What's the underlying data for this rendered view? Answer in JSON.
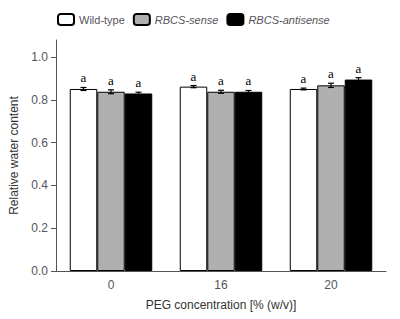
{
  "chart_data": {
    "type": "bar",
    "xlabel": "PEG concentration [% (w/v)]",
    "ylabel": "Relative water content",
    "categories": [
      "0",
      "16",
      "20"
    ],
    "series": [
      {
        "name": "Wild-type",
        "color": "white",
        "values": [
          0.851,
          0.862,
          0.851
        ],
        "errors": [
          0.007,
          0.005,
          0.004
        ],
        "annotations": [
          "a",
          "a",
          "a"
        ]
      },
      {
        "name": "RBCS-sense",
        "color": "#b0b0b0",
        "values": [
          0.838,
          0.838,
          0.868
        ],
        "errors": [
          0.009,
          0.007,
          0.01
        ],
        "annotations": [
          "a",
          "a",
          "a"
        ]
      },
      {
        "name": "RBCS-antisense",
        "color": "black",
        "values": [
          0.83,
          0.838,
          0.895
        ],
        "errors": [
          0.006,
          0.006,
          0.009
        ],
        "annotations": [
          "a",
          "a",
          "a"
        ]
      }
    ],
    "ylim": [
      0,
      1.08
    ],
    "yticks": [
      {
        "value": 0,
        "label": "0.0"
      },
      0.2,
      0.4,
      0.6,
      0.8,
      {
        "value": 1.0,
        "label": "1.0"
      }
    ],
    "grid": false,
    "legend": "upper left"
  }
}
